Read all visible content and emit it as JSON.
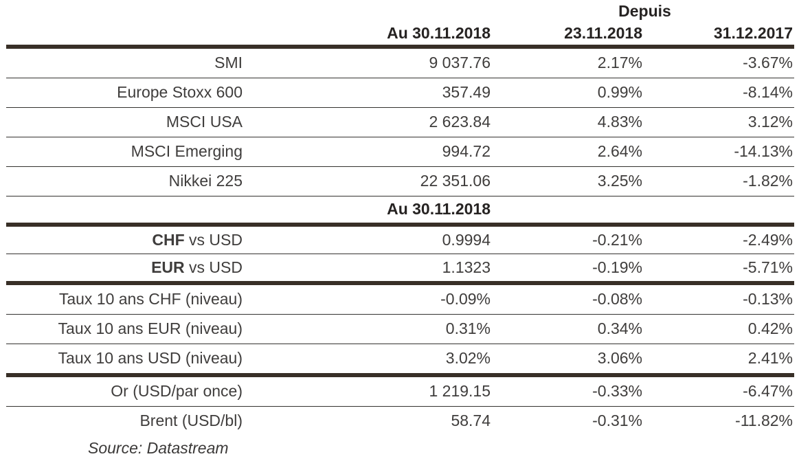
{
  "header": {
    "depuis_label": "Depuis",
    "col_value": "Au 30.11.2018",
    "col_since_prev": "23.11.2018",
    "col_since_ytd": "31.12.2017"
  },
  "section": {
    "title": "Au 30.11.2018"
  },
  "rows": [
    {
      "label": "SMI",
      "v1": "9 037.76",
      "v2": "2.17%",
      "v3": "-3.67%"
    },
    {
      "label": "Europe Stoxx 600",
      "v1": "357.49",
      "v2": "0.99%",
      "v3": "-8.14%"
    },
    {
      "label": "MSCI USA",
      "v1": "2 623.84",
      "v2": "4.83%",
      "v3": "3.12%"
    },
    {
      "label": "MSCI Emerging",
      "v1": "994.72",
      "v2": "2.64%",
      "v3": "-14.13%"
    },
    {
      "label": "Nikkei 225",
      "v1": "22 351.06",
      "v2": "3.25%",
      "v3": "-1.82%"
    },
    {
      "label_bold": "CHF",
      "label_rest": " vs USD",
      "v1": "0.9994",
      "v2": "-0.21%",
      "v3": "-2.49%"
    },
    {
      "label_bold": "EUR",
      "label_rest": " vs USD",
      "v1": "1.1323",
      "v2": "-0.19%",
      "v3": "-5.71%"
    },
    {
      "label": "Taux 10 ans CHF (niveau)",
      "v1": "-0.09%",
      "v2": "-0.08%",
      "v3": "-0.13%"
    },
    {
      "label": "Taux 10 ans EUR (niveau)",
      "v1": "0.31%",
      "v2": "0.34%",
      "v3": "0.42%"
    },
    {
      "label": "Taux 10 ans USD (niveau)",
      "v1": "3.02%",
      "v2": "3.06%",
      "v3": "2.41%"
    },
    {
      "label": "Or (USD/par once)",
      "v1": "1 219.15",
      "v2": "-0.33%",
      "v3": "-6.47%"
    },
    {
      "label": "Brent (USD/bl)",
      "v1": "58.74",
      "v2": "-0.31%",
      "v3": "-11.82%"
    }
  ],
  "footer": {
    "source": "Source: Datastream"
  },
  "colors": {
    "thick_rule": "#382f27",
    "thin_rule": "#33312f",
    "header_text": "#262322",
    "body_text": "#3f3d3c",
    "background": "#ffffff"
  }
}
